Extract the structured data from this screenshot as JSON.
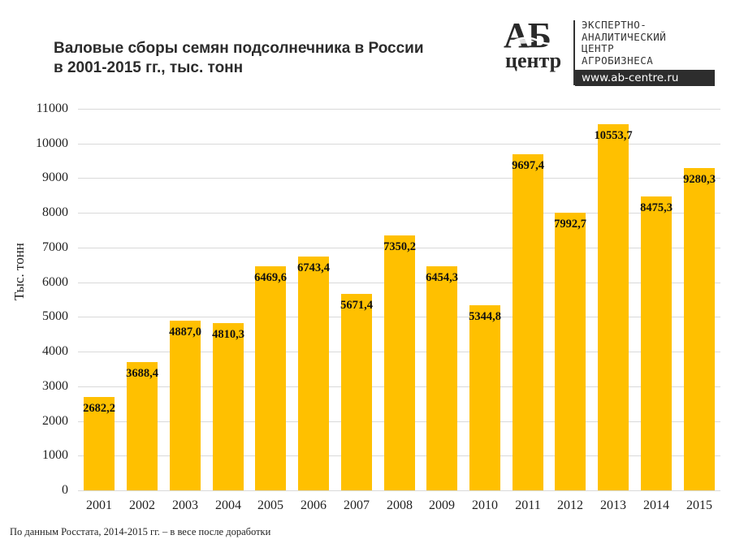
{
  "header": {
    "title_line1": "Валовые сборы семян подсолнечника в России",
    "title_line2": "в 2001-2015 гг., тыс. тонн"
  },
  "logo": {
    "mark_top": "АБ",
    "mark_bottom": "центр",
    "text_lines": [
      "ЭКСПЕРТНО-",
      "АНАЛИТИЧЕСКИЙ",
      "ЦЕНТР",
      "АГРОБИЗНЕСА"
    ],
    "url": "www.ab-centre.ru",
    "icon": "leaf-icon"
  },
  "footnote": "По данным Росстата, 2014-2015 гг. – в весе после доработки",
  "colors": {
    "bar": "#ffc000",
    "grid": "#d9d9d9",
    "text": "#222222"
  },
  "chart_data": {
    "type": "bar",
    "title": "Валовые сборы семян подсолнечника в России в 2001-2015 гг., тыс. тонн",
    "xlabel": "",
    "ylabel": "Тыс. тонн",
    "categories": [
      "2001",
      "2002",
      "2003",
      "2004",
      "2005",
      "2006",
      "2007",
      "2008",
      "2009",
      "2010",
      "2011",
      "2012",
      "2013",
      "2014",
      "2015"
    ],
    "values": [
      2682.2,
      3688.4,
      4887.0,
      4810.3,
      6469.6,
      6743.4,
      5671.4,
      7350.2,
      6454.3,
      5344.8,
      9697.4,
      7992.7,
      10553.7,
      8475.3,
      9280.3
    ],
    "value_labels": [
      "2682,2",
      "3688,4",
      "4887,0",
      "4810,3",
      "6469,6",
      "6743,4",
      "5671,4",
      "7350,2",
      "6454,3",
      "5344,8",
      "9697,4",
      "7992,7",
      "10553,7",
      "8475,3",
      "9280,3"
    ],
    "ylim": [
      0,
      11000
    ],
    "yticks": [
      0,
      1000,
      2000,
      3000,
      4000,
      5000,
      6000,
      7000,
      8000,
      9000,
      10000,
      11000
    ],
    "grid": true,
    "legend": "none",
    "data_labels": "inside-end"
  }
}
